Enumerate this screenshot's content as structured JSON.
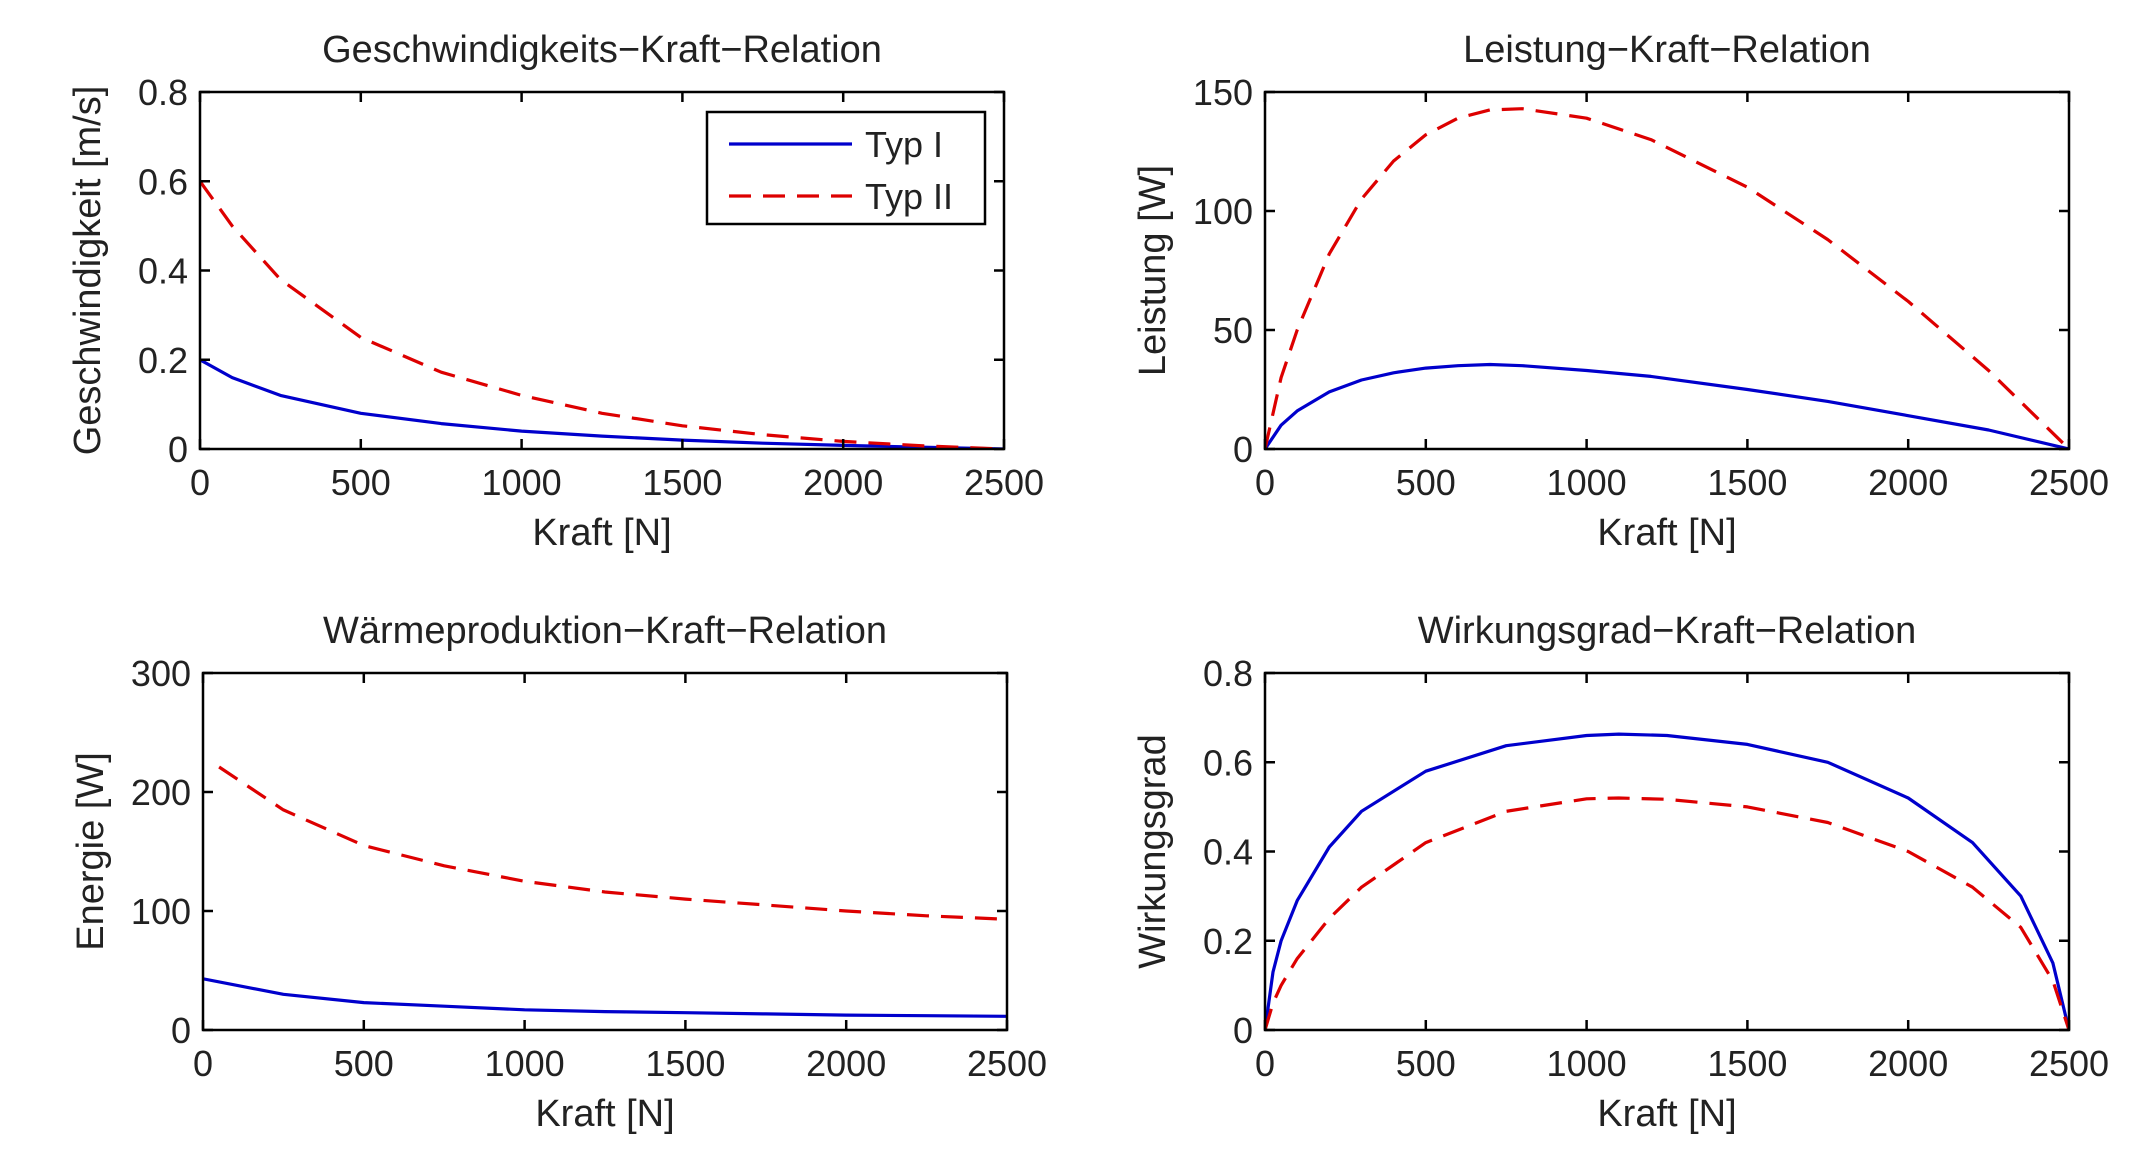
{
  "chart_data": [
    {
      "type": "line",
      "title": "Geschwindigkeits−Kraft−Relation",
      "xlabel": "Kraft [N]",
      "ylabel": "Geschwindigkeit [m/s]",
      "xlim": [
        0,
        2500
      ],
      "ylim": [
        0,
        0.8
      ],
      "xticks": [
        0,
        500,
        1000,
        1500,
        2000,
        2500
      ],
      "yticks": [
        0,
        0.2,
        0.4,
        0.6,
        0.8
      ],
      "xtick_labels": [
        "0",
        "500",
        "1000",
        "1500",
        "2000",
        "2500"
      ],
      "ytick_labels": [
        "0",
        "0.2",
        "0.4",
        "0.6",
        "0.8"
      ],
      "grid": false,
      "legend": "top-right",
      "series": [
        {
          "name": "Typ I",
          "color": "#0000cc",
          "dash": "solid",
          "x": [
            0,
            100,
            250,
            500,
            750,
            1000,
            1250,
            1500,
            1750,
            2000,
            2250,
            2500
          ],
          "y": [
            0.2,
            0.16,
            0.12,
            0.08,
            0.057,
            0.04,
            0.029,
            0.02,
            0.013,
            0.008,
            0.004,
            0
          ]
        },
        {
          "name": "Typ II",
          "color": "#dd0000",
          "dash": "dashed",
          "x": [
            0,
            100,
            250,
            500,
            750,
            1000,
            1250,
            1500,
            1750,
            2000,
            2250,
            2500
          ],
          "y": [
            0.6,
            0.5,
            0.38,
            0.25,
            0.172,
            0.12,
            0.08,
            0.052,
            0.032,
            0.017,
            0.007,
            0
          ]
        }
      ]
    },
    {
      "type": "line",
      "title": "Leistung−Kraft−Relation",
      "xlabel": "Kraft [N]",
      "ylabel": "Leistung [W]",
      "xlim": [
        0,
        2500
      ],
      "ylim": [
        0,
        150
      ],
      "xticks": [
        0,
        500,
        1000,
        1500,
        2000,
        2500
      ],
      "yticks": [
        0,
        50,
        100,
        150
      ],
      "xtick_labels": [
        "0",
        "500",
        "1000",
        "1500",
        "2000",
        "2500"
      ],
      "ytick_labels": [
        "0",
        "50",
        "100",
        "150"
      ],
      "grid": false,
      "series": [
        {
          "name": "Typ I",
          "color": "#0000cc",
          "dash": "solid",
          "x": [
            0,
            50,
            100,
            200,
            300,
            400,
            500,
            600,
            700,
            800,
            1000,
            1200,
            1500,
            1750,
            2000,
            2250,
            2500
          ],
          "y": [
            0,
            10,
            16,
            24,
            29,
            32,
            34,
            35,
            35.5,
            35,
            33,
            30.5,
            25,
            20,
            14,
            8,
            0
          ]
        },
        {
          "name": "Typ II",
          "color": "#dd0000",
          "dash": "dashed",
          "x": [
            0,
            50,
            100,
            200,
            300,
            400,
            500,
            600,
            700,
            800,
            1000,
            1200,
            1500,
            1750,
            2000,
            2250,
            2500
          ],
          "y": [
            0,
            30,
            50,
            82,
            105,
            121,
            132,
            139,
            142.5,
            143,
            139,
            130,
            110,
            88,
            62,
            33,
            0
          ]
        }
      ]
    },
    {
      "type": "line",
      "title": "Wärmeproduktion−Kraft−Relation",
      "xlabel": "Kraft [N]",
      "ylabel": "Energie [W]",
      "xlim": [
        0,
        2500
      ],
      "ylim": [
        0,
        300
      ],
      "xticks": [
        0,
        500,
        1000,
        1500,
        2000,
        2500
      ],
      "yticks": [
        0,
        100,
        200,
        300
      ],
      "xtick_labels": [
        "0",
        "500",
        "1000",
        "1500",
        "2000",
        "2500"
      ],
      "ytick_labels": [
        "0",
        "100",
        "200",
        "300"
      ],
      "grid": false,
      "series": [
        {
          "name": "Typ I",
          "color": "#0000cc",
          "dash": "solid",
          "x": [
            0,
            250,
            500,
            750,
            1000,
            1250,
            1500,
            1750,
            2000,
            2250,
            2500
          ],
          "y": [
            43,
            30,
            23,
            20,
            17,
            15.5,
            14.5,
            13.5,
            12.5,
            12,
            11.5
          ]
        },
        {
          "name": "Typ II",
          "color": "#dd0000",
          "dash": "dashed",
          "x": [
            50,
            250,
            500,
            750,
            1000,
            1250,
            1500,
            1750,
            2000,
            2250,
            2500
          ],
          "y": [
            221,
            185,
            155,
            138,
            125,
            116,
            110,
            105,
            100,
            96,
            93
          ]
        }
      ]
    },
    {
      "type": "line",
      "title": "Wirkungsgrad−Kraft−Relation",
      "xlabel": "Kraft [N]",
      "ylabel": "Wirkungsgrad",
      "xlim": [
        0,
        2500
      ],
      "ylim": [
        0,
        0.8
      ],
      "xticks": [
        0,
        500,
        1000,
        1500,
        2000,
        2500
      ],
      "yticks": [
        0,
        0.2,
        0.4,
        0.6,
        0.8
      ],
      "xtick_labels": [
        "0",
        "500",
        "1000",
        "1500",
        "2000",
        "2500"
      ],
      "ytick_labels": [
        "0",
        "0.2",
        "0.4",
        "0.6",
        "0.8"
      ],
      "grid": false,
      "series": [
        {
          "name": "Typ I",
          "color": "#0000cc",
          "dash": "solid",
          "x": [
            0,
            25,
            50,
            100,
            200,
            300,
            500,
            750,
            1000,
            1100,
            1250,
            1500,
            1750,
            2000,
            2200,
            2350,
            2450,
            2500
          ],
          "y": [
            0,
            0.13,
            0.2,
            0.29,
            0.41,
            0.49,
            0.58,
            0.637,
            0.66,
            0.663,
            0.66,
            0.64,
            0.6,
            0.52,
            0.42,
            0.3,
            0.15,
            0
          ]
        },
        {
          "name": "Typ II",
          "color": "#dd0000",
          "dash": "dashed",
          "x": [
            0,
            25,
            50,
            100,
            200,
            300,
            500,
            750,
            1000,
            1100,
            1250,
            1500,
            1750,
            2000,
            2200,
            2350,
            2450,
            2500
          ],
          "y": [
            0,
            0.06,
            0.1,
            0.16,
            0.25,
            0.32,
            0.42,
            0.49,
            0.518,
            0.52,
            0.517,
            0.5,
            0.465,
            0.4,
            0.32,
            0.23,
            0.11,
            0
          ]
        }
      ]
    }
  ]
}
